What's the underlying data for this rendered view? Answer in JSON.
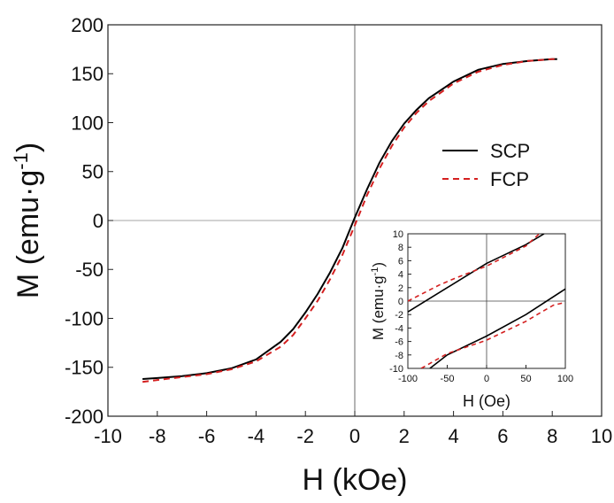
{
  "chart_data": [
    {
      "type": "line",
      "role": "main",
      "xlabel": "H (kOe)",
      "ylabel_main": "M (emu·g",
      "ylabel_sup": "-1",
      "ylabel_close": ")",
      "xlim": [
        -10,
        10
      ],
      "ylim": [
        -200,
        200
      ],
      "xticks": [
        -10,
        -8,
        -6,
        -4,
        -2,
        0,
        2,
        4,
        6,
        8,
        10
      ],
      "yticks": [
        -200,
        -150,
        -100,
        -50,
        0,
        50,
        100,
        150,
        200
      ],
      "grid": false,
      "legend_position": "right",
      "series": [
        {
          "name": "SCP",
          "color": "#000000",
          "style": "solid",
          "x": [
            -8.6,
            -8,
            -7,
            -6,
            -5,
            -4,
            -3,
            -2.5,
            -2,
            -1.5,
            -1,
            -0.5,
            0,
            0.5,
            1,
            1.5,
            2,
            2.5,
            3,
            4,
            5,
            6,
            7,
            8,
            8.2
          ],
          "y": [
            -162,
            -161,
            -159,
            -156,
            -151,
            -142,
            -124,
            -111,
            -94,
            -75,
            -53,
            -28,
            3,
            32,
            59,
            81,
            99,
            113,
            125,
            142,
            154,
            160,
            163,
            165,
            165
          ]
        },
        {
          "name": "FCP",
          "color": "#d42020",
          "style": "dashed",
          "x": [
            -8.6,
            -8,
            -7,
            -6,
            -5,
            -4,
            -3,
            -2.5,
            -2,
            -1.5,
            -1,
            -0.5,
            0,
            0.5,
            1,
            1.5,
            2,
            2.5,
            3,
            4,
            5,
            6,
            7,
            8,
            8.2
          ],
          "y": [
            -165,
            -163,
            -160,
            -157,
            -152,
            -144,
            -129,
            -117,
            -100,
            -82,
            -60,
            -35,
            -5,
            26,
            53,
            76,
            95,
            110,
            122,
            140,
            152,
            159,
            163,
            165,
            165
          ]
        }
      ]
    },
    {
      "type": "line",
      "role": "inset",
      "xlabel": "H (Oe)",
      "ylabel_main": "M (emu·g",
      "ylabel_sup": "-1",
      "ylabel_close": ")",
      "xlim": [
        -100,
        100
      ],
      "ylim": [
        -10,
        10
      ],
      "xticks": [
        -100,
        -50,
        0,
        50,
        100
      ],
      "yticks": [
        -10,
        -8,
        -6,
        -4,
        -2,
        0,
        2,
        4,
        6,
        8,
        10
      ],
      "grid": false,
      "series": [
        {
          "name": "SCP",
          "color": "#000000",
          "style": "solid",
          "branches": [
            {
              "x": [
                -100,
                -50,
                0,
                50,
                73
              ],
              "y": [
                -1.6,
                2.0,
                5.6,
                8.4,
                10
              ]
            },
            {
              "x": [
                -72,
                -50,
                0,
                50,
                100
              ],
              "y": [
                -10,
                -8.0,
                -5.2,
                -2.0,
                1.8
              ]
            }
          ]
        },
        {
          "name": "FCP",
          "color": "#d42020",
          "style": "dashed",
          "branches": [
            {
              "x": [
                -100,
                -60,
                -40,
                0,
                50,
                67
              ],
              "y": [
                0,
                2.4,
                3.4,
                5.2,
                8.2,
                10
              ]
            },
            {
              "x": [
                -83,
                -50,
                0,
                50,
                70,
                85,
                100
              ],
              "y": [
                -10,
                -7.8,
                -5.8,
                -3.0,
                -1.6,
                -0.6,
                -0.2
              ]
            }
          ]
        }
      ]
    }
  ]
}
